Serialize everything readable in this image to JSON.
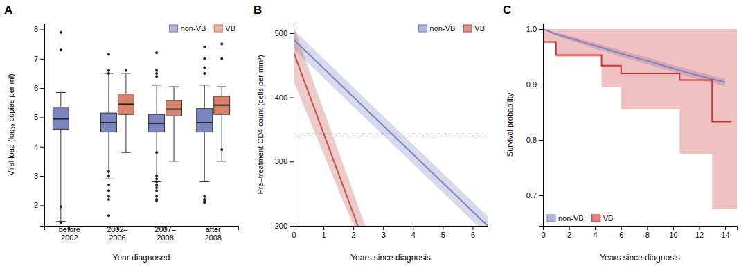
{
  "chart_data": [
    {
      "type": "box",
      "title": "A",
      "xlabel": "Year diagnosed",
      "ylabel": "Viral load (log₁₀ copies per ml)",
      "categories": [
        "before\n2002",
        "2002–\n2006",
        "2007–\n2008",
        "after\n2008"
      ],
      "series": [
        {
          "name": "non-VB",
          "color": "#7b85c0",
          "boxes": [
            {
              "median": 4.95,
              "q1": 4.6,
              "q3": 5.35,
              "whislo": 1.45,
              "whishi": 5.85
            },
            {
              "median": 4.82,
              "q1": 4.5,
              "q3": 5.15,
              "whislo": 2.9,
              "whishi": 6.5
            },
            {
              "median": 4.8,
              "q1": 4.5,
              "q3": 5.1,
              "whislo": 2.8,
              "whishi": 6.1
            },
            {
              "median": 4.82,
              "q1": 4.5,
              "q3": 5.3,
              "whislo": 2.8,
              "whishi": 6.1
            }
          ],
          "outliers": [
            [
              7.9,
              7.3,
              1.95,
              1.4
            ],
            [
              7.15,
              6.6,
              6.5,
              3.15,
              3.0,
              2.7,
              2.5,
              2.3,
              2.2,
              1.65
            ],
            [
              7.2,
              6.6,
              6.5,
              6.4,
              3.8,
              3.0,
              2.9,
              2.8,
              2.7,
              2.6,
              2.5,
              2.3,
              2.2,
              2.15
            ],
            [
              7.4,
              7.0,
              6.7,
              6.5,
              2.3,
              2.2,
              2.15,
              2.1
            ]
          ]
        },
        {
          "name": "VB",
          "color": "#d9826a",
          "boxes": [
            null,
            {
              "median": 5.45,
              "q1": 5.1,
              "q3": 5.8,
              "whislo": 3.8,
              "whishi": 6.5
            },
            {
              "median": 5.28,
              "q1": 5.05,
              "q3": 5.58,
              "whislo": 3.5,
              "whishi": 6.05
            },
            {
              "median": 5.42,
              "q1": 5.1,
              "q3": 5.72,
              "whislo": 3.5,
              "whishi": 6.05
            }
          ],
          "outliers": [
            [],
            [
              6.6
            ],
            [],
            [
              7.5,
              7.0,
              3.9
            ]
          ]
        }
      ],
      "ylim": [
        1.3,
        8.2
      ],
      "yticks": [
        2,
        3,
        4,
        5,
        6,
        7,
        8
      ],
      "grid": false,
      "legend": "upper right"
    },
    {
      "type": "line",
      "title": "B",
      "xlabel": "Years since diagnosis",
      "ylabel": "Pre–treatment CD4 count (cells per mm³)",
      "series": [
        {
          "name": "non-VB",
          "color": "#7b85c0",
          "x": [
            0,
            6.5
          ],
          "values": [
            490,
            200
          ],
          "upper_x": [
            0,
            6.5
          ],
          "upper": [
            505,
            215
          ],
          "lower_x": [
            0,
            6.5
          ],
          "lower": [
            475,
            185
          ]
        },
        {
          "name": "VB",
          "color": "#c0524a",
          "x": [
            0,
            2.15
          ],
          "values": [
            470,
            200
          ],
          "upper_x": [
            0,
            2.4
          ],
          "upper": [
            510,
            200
          ],
          "lower_x": [
            0,
            2.0
          ],
          "lower": [
            425,
            200
          ]
        }
      ],
      "reference_y": 343,
      "xlim": [
        0,
        6.5
      ],
      "xticks": [
        0,
        1,
        2,
        3,
        4,
        5,
        6
      ],
      "ylim": [
        200,
        515
      ],
      "yticks": [
        200,
        300,
        400,
        500
      ],
      "grid": false,
      "legend": "upper right"
    },
    {
      "type": "line",
      "title": "C",
      "xlabel": "Years since diagnosis",
      "ylabel": "Survival probability",
      "series": [
        {
          "name": "non-VB",
          "color": "#7b85c0",
          "type": "line",
          "x": [
            0,
            1,
            2,
            3,
            4,
            5,
            6,
            7,
            8,
            9,
            10,
            11,
            12,
            13,
            14
          ],
          "values": [
            1.0,
            0.991,
            0.984,
            0.977,
            0.97,
            0.963,
            0.956,
            0.949,
            0.943,
            0.936,
            0.929,
            0.922,
            0.916,
            0.91,
            0.904
          ],
          "upper": [
            1.0,
            0.994,
            0.988,
            0.981,
            0.975,
            0.968,
            0.962,
            0.955,
            0.949,
            0.942,
            0.935,
            0.929,
            0.922,
            0.916,
            0.91
          ],
          "lower": [
            1.0,
            0.988,
            0.98,
            0.973,
            0.965,
            0.958,
            0.95,
            0.943,
            0.937,
            0.93,
            0.923,
            0.915,
            0.909,
            0.903,
            0.897
          ]
        },
        {
          "name": "VB",
          "color": "#cc3333",
          "type": "step",
          "x": [
            0,
            0,
            1.0,
            1.0,
            4.5,
            4.5,
            6.0,
            6.0,
            10.5,
            10.5,
            13.0,
            13.0,
            14.5
          ],
          "values": [
            1.0,
            0.977,
            0.977,
            0.953,
            0.953,
            0.934,
            0.934,
            0.92,
            0.92,
            0.908,
            0.908,
            0.833,
            0.833
          ],
          "band_x": [
            0,
            1.0,
            4.5,
            6.0,
            10.5,
            13.0,
            14.9
          ],
          "upper": [
            1.0,
            1.0,
            1.0,
            1.0,
            1.0,
            1.0,
            1.0
          ],
          "lower": [
            0.975,
            0.95,
            0.895,
            0.855,
            0.775,
            0.675,
            0.675
          ]
        }
      ],
      "xlim": [
        0,
        14.9
      ],
      "xticks": [
        0,
        2,
        4,
        6,
        8,
        10,
        12,
        14
      ],
      "ylim": [
        0.645,
        1.01
      ],
      "yticks": [
        0.7,
        0.8,
        0.9,
        {
          "value": 1.0,
          "label": "1.0"
        }
      ],
      "grid": false,
      "legend": "lower left"
    }
  ]
}
